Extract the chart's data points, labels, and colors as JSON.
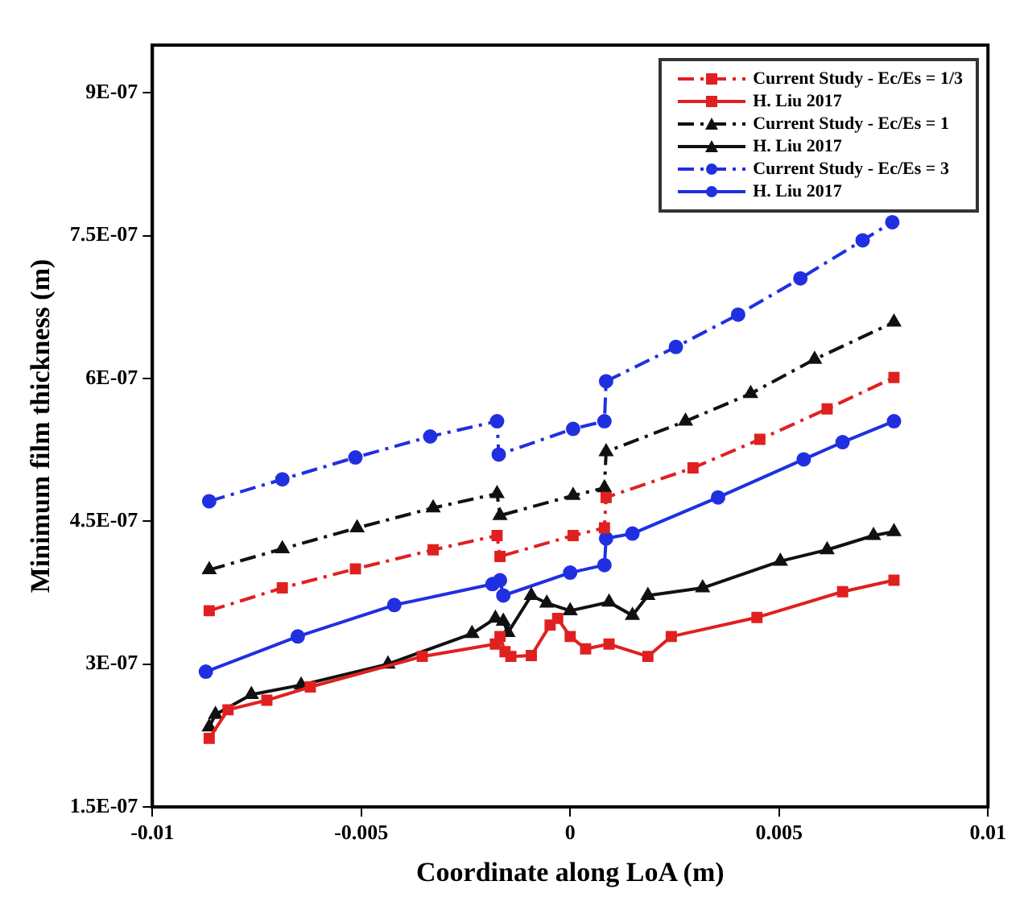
{
  "chart_data": {
    "type": "line",
    "xlabel": "Coordinate along LoA (m)",
    "ylabel": "Minimum film thickness (m)",
    "xlim": [
      -0.01,
      0.01
    ],
    "xticks": [
      -0.01,
      -0.005,
      0,
      0.005,
      0.01
    ],
    "ylim": [
      1.5e-07,
      9.5e-07
    ],
    "yticks": [
      {
        "value": 1.5e-07,
        "label": "1.5E-07"
      },
      {
        "value": 3e-07,
        "label": "3E-07"
      },
      {
        "value": 4.5e-07,
        "label": "4.5E-07"
      },
      {
        "value": 6e-07,
        "label": "6E-07"
      },
      {
        "value": 7.5e-07,
        "label": "7.5E-07"
      },
      {
        "value": 9e-07,
        "label": "9E-07"
      }
    ],
    "grid": false,
    "legend": "top right",
    "series": [
      {
        "name": "Current Study - Ec/Es = 1/3",
        "color": "#e02020",
        "marker": "square",
        "line_style": "dashed",
        "x": [
          -0.00864,
          -0.00689,
          -0.00514,
          -0.00328,
          -0.00175,
          -0.00168,
          7e-05,
          0.00082,
          0.00086,
          0.00294,
          0.00454,
          0.00615,
          0.00775
        ],
        "values": [
          3.56e-07,
          3.8e-07,
          4e-07,
          4.2e-07,
          4.35e-07,
          4.13e-07,
          4.35e-07,
          4.43e-07,
          4.75e-07,
          5.06e-07,
          5.36e-07,
          5.68e-07,
          6.01e-07
        ]
      },
      {
        "name": "H. Liu 2017",
        "color": "#e02020",
        "marker": "square",
        "line_style": "solid",
        "x": [
          -0.00864,
          -0.00819,
          -0.00726,
          -0.00622,
          -0.00354,
          -0.00179,
          -0.00168,
          -0.00156,
          -0.00142,
          -0.00093,
          -0.00048,
          -0.0003,
          0,
          0.00037,
          0.00093,
          0.00186,
          0.00242,
          0.00447,
          0.00652,
          0.00775
        ],
        "values": [
          2.22e-07,
          2.52e-07,
          2.62e-07,
          2.76e-07,
          3.08e-07,
          3.21e-07,
          3.29e-07,
          3.13e-07,
          3.08e-07,
          3.09e-07,
          3.41e-07,
          3.48e-07,
          3.29e-07,
          3.16e-07,
          3.21e-07,
          3.08e-07,
          3.29e-07,
          3.49e-07,
          3.76e-07,
          3.88e-07
        ]
      },
      {
        "name": "Current Study - Ec/Es = 1",
        "color": "#111111",
        "marker": "triangle",
        "line_style": "dashed",
        "x": [
          -0.00864,
          -0.00689,
          -0.0051,
          -0.00328,
          -0.00175,
          -0.00168,
          7e-05,
          0.00082,
          0.00086,
          0.00276,
          0.00432,
          0.00585,
          0.00775
        ],
        "values": [
          3.99e-07,
          4.21e-07,
          4.43e-07,
          4.64e-07,
          4.79e-07,
          4.56e-07,
          4.77e-07,
          4.85e-07,
          5.23e-07,
          5.55e-07,
          5.84e-07,
          6.2e-07,
          6.59e-07
        ]
      },
      {
        "name": "H. Liu 2017",
        "color": "#111111",
        "marker": "triangle",
        "line_style": "solid",
        "x": [
          -0.00864,
          -0.00849,
          -0.00763,
          -0.00644,
          -0.00436,
          -0.00235,
          -0.00179,
          -0.0016,
          -0.00149,
          -0.00093,
          -0.00056,
          0,
          0.00093,
          0.00149,
          0.00186,
          0.00317,
          0.00503,
          0.00615,
          0.00726,
          0.00775
        ],
        "values": [
          2.34e-07,
          2.47e-07,
          2.68e-07,
          2.78e-07,
          3e-07,
          3.32e-07,
          3.48e-07,
          3.45e-07,
          3.33e-07,
          3.72e-07,
          3.64e-07,
          3.56e-07,
          3.65e-07,
          3.51e-07,
          3.72e-07,
          3.8e-07,
          4.08e-07,
          4.2e-07,
          4.35e-07,
          4.39e-07
        ]
      },
      {
        "name": "Current Study - Ec/Es = 3",
        "color": "#2030e0",
        "marker": "circle",
        "line_style": "dashed",
        "x": [
          -0.00864,
          -0.00689,
          -0.00514,
          -0.00335,
          -0.00175,
          -0.00171,
          7e-05,
          0.00082,
          0.00086,
          0.00253,
          0.00402,
          0.00551,
          0.007,
          0.00771
        ],
        "values": [
          4.71e-07,
          4.94e-07,
          5.17e-07,
          5.39e-07,
          5.55e-07,
          5.2e-07,
          5.47e-07,
          5.55e-07,
          5.97e-07,
          6.33e-07,
          6.67e-07,
          7.05e-07,
          7.45e-07,
          7.64e-07
        ]
      },
      {
        "name": "H. Liu 2017",
        "color": "#2030e0",
        "marker": "circle",
        "line_style": "solid",
        "x": [
          -0.00872,
          -0.00652,
          -0.00421,
          -0.00186,
          -0.00168,
          -0.0016,
          0,
          0.00082,
          0.00086,
          0.00149,
          0.00354,
          0.00559,
          0.00652,
          0.00775
        ],
        "values": [
          2.92e-07,
          3.29e-07,
          3.62e-07,
          3.84e-07,
          3.88e-07,
          3.72e-07,
          3.96e-07,
          4.04e-07,
          4.32e-07,
          4.37e-07,
          4.75e-07,
          5.15e-07,
          5.33e-07,
          5.55e-07
        ]
      }
    ]
  }
}
